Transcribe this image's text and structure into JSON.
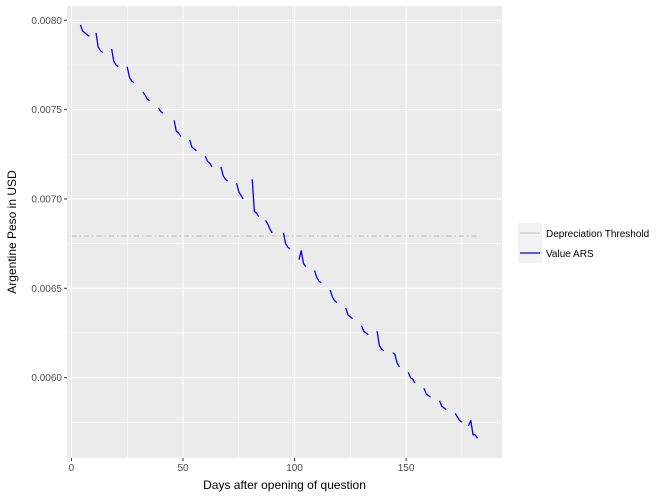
{
  "chart_data": {
    "type": "line",
    "xlabel": "Days after opening of question",
    "ylabel": "Argentine Peso in USD",
    "xlim": [
      -2,
      193
    ],
    "ylim": [
      0.00555,
      0.00808
    ],
    "x_ticks": [
      0,
      50,
      100,
      150
    ],
    "y_ticks": [
      0.006,
      0.0065,
      0.007,
      0.0075,
      0.008
    ],
    "y_tick_labels": [
      "0.0060",
      "0.0065",
      "0.0070",
      "0.0075",
      "0.0080"
    ],
    "grid": true,
    "legend_position": "right",
    "colors": {
      "panel_bg": "#ebebeb",
      "grid_major": "#ffffff",
      "value_line": "#0000ff",
      "threshold_line": "#bdbdbd"
    },
    "series": [
      {
        "name": "Depreciation Threshold",
        "style": "dashed",
        "color": "#bdbdbd",
        "points": [
          [
            0,
            0.006792
          ],
          [
            183,
            0.006792
          ]
        ]
      },
      {
        "name": "Value ARS",
        "style": "solid",
        "color": "#0000ff",
        "segments": [
          [
            [
              4,
              0.007975
            ],
            [
              5,
              0.00794
            ],
            [
              6,
              0.00793
            ],
            [
              7,
              0.00792
            ],
            [
              8,
              0.00791
            ]
          ],
          [
            [
              11,
              0.00793
            ],
            [
              12,
              0.00785
            ],
            [
              13,
              0.00783
            ],
            [
              14,
              0.00782
            ]
          ],
          [
            [
              18,
              0.00784
            ],
            [
              19,
              0.00777
            ],
            [
              20,
              0.00775
            ],
            [
              21,
              0.00774
            ]
          ],
          [
            [
              25,
              0.00774
            ],
            [
              26,
              0.00768
            ],
            [
              27,
              0.00766
            ],
            [
              28,
              0.00765
            ]
          ],
          [
            [
              32,
              0.0076
            ],
            [
              33,
              0.00758
            ],
            [
              34,
              0.00756
            ],
            [
              35,
              0.00755
            ]
          ],
          [
            [
              39,
              0.00751
            ],
            [
              40,
              0.00749
            ],
            [
              41,
              0.00748
            ]
          ],
          [
            [
              46,
              0.00744
            ],
            [
              47,
              0.00738
            ],
            [
              48,
              0.00737
            ],
            [
              49,
              0.00735
            ]
          ],
          [
            [
              53,
              0.00733
            ],
            [
              54,
              0.00729
            ],
            [
              55,
              0.00728
            ],
            [
              56,
              0.00727
            ]
          ],
          [
            [
              60,
              0.00724
            ],
            [
              61,
              0.00721
            ],
            [
              62,
              0.0072
            ],
            [
              63,
              0.00718
            ]
          ],
          [
            [
              67,
              0.00718
            ],
            [
              68,
              0.00713
            ],
            [
              69,
              0.00711
            ],
            [
              70,
              0.0071
            ]
          ],
          [
            [
              74,
              0.00709
            ],
            [
              75,
              0.00704
            ],
            [
              76,
              0.00702
            ],
            [
              77,
              0.007
            ]
          ],
          [
            [
              81,
              0.00711
            ],
            [
              82,
              0.00693
            ],
            [
              83,
              0.00692
            ],
            [
              84,
              0.0069
            ]
          ],
          [
            [
              87,
              0.00688
            ],
            [
              88,
              0.00686
            ],
            [
              89,
              0.00683
            ],
            [
              90,
              0.00681
            ]
          ],
          [
            [
              95,
              0.00681
            ],
            [
              96,
              0.00675
            ],
            [
              97,
              0.00673
            ],
            [
              98,
              0.00672
            ]
          ],
          [
            [
              102,
              0.00666
            ],
            [
              103,
              0.00671
            ],
            [
              104,
              0.00664
            ],
            [
              105,
              0.00662
            ]
          ],
          [
            [
              109,
              0.0066
            ],
            [
              110,
              0.00656
            ],
            [
              111,
              0.00654
            ],
            [
              112,
              0.00653
            ]
          ],
          [
            [
              116,
              0.00649
            ],
            [
              117,
              0.00645
            ],
            [
              118,
              0.00643
            ],
            [
              119,
              0.00642
            ]
          ],
          [
            [
              123,
              0.00639
            ],
            [
              124,
              0.00635
            ],
            [
              125,
              0.00634
            ],
            [
              126,
              0.00633
            ]
          ],
          [
            [
              130,
              0.00629
            ],
            [
              131,
              0.00626
            ],
            [
              132,
              0.00625
            ],
            [
              133,
              0.00624
            ]
          ],
          [
            [
              137,
              0.00626
            ],
            [
              138,
              0.00618
            ],
            [
              139,
              0.00616
            ],
            [
              140,
              0.00615
            ]
          ],
          [
            [
              144,
              0.00614
            ],
            [
              145,
              0.00613
            ],
            [
              146,
              0.00608
            ],
            [
              147,
              0.00606
            ]
          ],
          [
            [
              151,
              0.00603
            ],
            [
              152,
              0.006
            ],
            [
              153,
              0.00599
            ],
            [
              154,
              0.00597
            ]
          ],
          [
            [
              158,
              0.00594
            ],
            [
              159,
              0.00591
            ],
            [
              160,
              0.0059
            ],
            [
              161,
              0.00589
            ]
          ],
          [
            [
              165,
              0.00587
            ],
            [
              166,
              0.00584
            ],
            [
              167,
              0.00583
            ],
            [
              168,
              0.00582
            ]
          ],
          [
            [
              172,
              0.0058
            ],
            [
              173,
              0.00578
            ],
            [
              174,
              0.00576
            ],
            [
              175,
              0.00575
            ]
          ],
          [
            [
              178,
              0.00573
            ],
            [
              179,
              0.00576
            ],
            [
              180,
              0.00568
            ],
            [
              181,
              0.00568
            ],
            [
              182,
              0.00566
            ]
          ]
        ]
      }
    ]
  }
}
